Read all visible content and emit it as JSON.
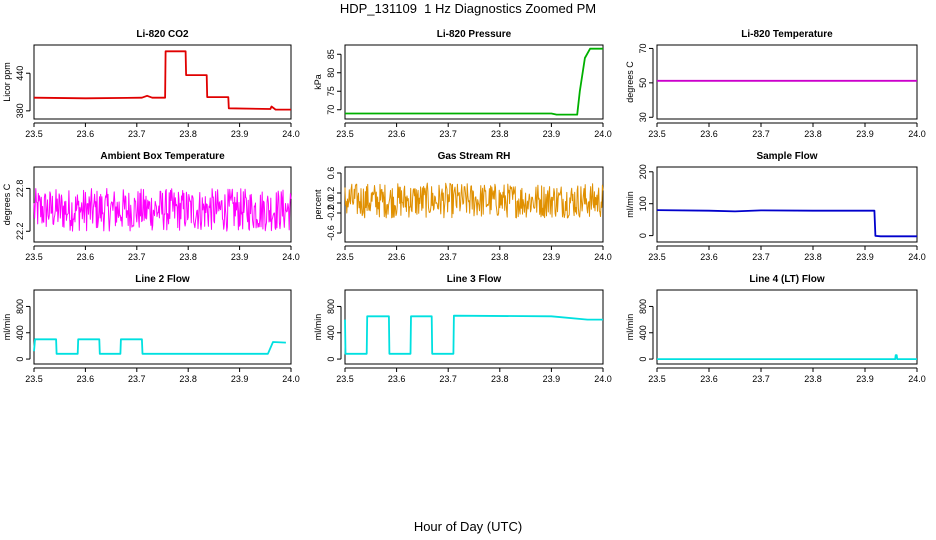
{
  "title": "HDP_131109  1 Hz Diagnostics Zoomed PM",
  "xlabel": "Hour of Day (UTC)",
  "chart_data": [
    {
      "type": "line",
      "title": "Li-820 CO2",
      "ylabel": "Licor ppm",
      "color": "#e00000",
      "xticks": [
        23.5,
        23.6,
        23.7,
        23.8,
        23.9,
        24.0
      ],
      "xlim": [
        23.5,
        24.0
      ],
      "yticks": [
        380,
        440
      ],
      "ylim": [
        367,
        485
      ],
      "series": [
        {
          "x": [
            23.5,
            23.6,
            23.71,
            23.72,
            23.73,
            23.755,
            23.756,
            23.795,
            23.796,
            23.836,
            23.837,
            23.878,
            23.879,
            23.96,
            23.962,
            23.97,
            24.0
          ],
          "y": [
            401,
            400,
            401,
            404,
            401,
            401,
            475,
            475,
            437,
            437,
            402,
            402,
            384,
            383,
            387,
            382,
            382
          ]
        }
      ]
    },
    {
      "type": "line",
      "title": "Li-820 Pressure",
      "ylabel": "kPa",
      "color": "#00b000",
      "xticks": [
        23.5,
        23.6,
        23.7,
        23.8,
        23.9,
        24.0
      ],
      "xlim": [
        23.5,
        24.0
      ],
      "yticks": [
        70,
        75,
        80,
        85
      ],
      "ylim": [
        67.5,
        87.5
      ],
      "series": [
        {
          "x": [
            23.5,
            23.9,
            23.91,
            23.95,
            23.955,
            23.965,
            23.975,
            24.0
          ],
          "y": [
            69.0,
            69.0,
            68.7,
            68.7,
            75,
            84,
            86.5,
            86.5
          ]
        }
      ]
    },
    {
      "type": "line",
      "title": "Li-820 Temperature",
      "ylabel": "degrees C",
      "color": "#cc00cc",
      "xticks": [
        23.5,
        23.6,
        23.7,
        23.8,
        23.9,
        24.0
      ],
      "xlim": [
        23.5,
        24.0
      ],
      "yticks": [
        30,
        50,
        70
      ],
      "ylim": [
        29,
        72
      ],
      "series": [
        {
          "x": [
            23.5,
            24.0
          ],
          "y": [
            51.2,
            51.2
          ]
        }
      ]
    },
    {
      "type": "line",
      "title": "Ambient Box Temperature",
      "ylabel": "degrees C",
      "color": "#ff00ff",
      "xticks": [
        23.5,
        23.6,
        23.7,
        23.8,
        23.9,
        24.0
      ],
      "xlim": [
        23.5,
        24.0
      ],
      "yticks": [
        22.2,
        22.8
      ],
      "ylim": [
        22.05,
        23.1
      ],
      "series": [
        {
          "noise": {
            "from": 23.5,
            "to": 24.0,
            "n": 420,
            "center": 22.5,
            "amp": 0.3
          }
        }
      ]
    },
    {
      "type": "line",
      "title": "Gas Stream RH",
      "ylabel": "percent",
      "color": "#e09000",
      "xticks": [
        23.5,
        23.6,
        23.7,
        23.8,
        23.9,
        24.0
      ],
      "xlim": [
        23.5,
        24.0
      ],
      "yticks": [
        -0.6,
        -0.2,
        0.0,
        0.2,
        0.6
      ],
      "ylim": [
        -0.78,
        0.72
      ],
      "series": [
        {
          "noise": {
            "from": 23.5,
            "to": 24.0,
            "n": 420,
            "center": 0.05,
            "amp": 0.35
          }
        }
      ]
    },
    {
      "type": "line",
      "title": "Sample Flow",
      "ylabel": "ml/min",
      "color": "#0000cc",
      "xticks": [
        23.5,
        23.6,
        23.7,
        23.8,
        23.9,
        24.0
      ],
      "xlim": [
        23.5,
        24.0
      ],
      "yticks": [
        0,
        100,
        200
      ],
      "ylim": [
        -20,
        215
      ],
      "series": [
        {
          "x": [
            23.5,
            23.6,
            23.65,
            23.7,
            23.8,
            23.918,
            23.92,
            23.93,
            24.0
          ],
          "y": [
            80,
            78,
            76,
            79,
            78,
            78,
            -1,
            -2,
            -2
          ]
        }
      ]
    },
    {
      "type": "line",
      "title": "Line 2 Flow",
      "ylabel": "ml/min",
      "color": "#00e0e0",
      "xticks": [
        23.5,
        23.6,
        23.7,
        23.8,
        23.9,
        24.0
      ],
      "xlim": [
        23.5,
        24.0
      ],
      "yticks": [
        0,
        400,
        800
      ],
      "ylim": [
        -75,
        1050
      ],
      "series": [
        {
          "x": [
            23.5,
            23.502,
            23.543,
            23.544,
            23.585,
            23.586,
            23.627,
            23.628,
            23.668,
            23.669,
            23.71,
            23.711,
            23.955,
            23.965,
            23.99
          ],
          "y": [
            120,
            300,
            300,
            80,
            80,
            300,
            300,
            80,
            80,
            300,
            300,
            80,
            80,
            260,
            250
          ]
        }
      ]
    },
    {
      "type": "line",
      "title": "Line 3 Flow",
      "ylabel": "ml/min",
      "color": "#00e0e0",
      "xticks": [
        23.5,
        23.6,
        23.7,
        23.8,
        23.9,
        24.0
      ],
      "xlim": [
        23.5,
        24.0
      ],
      "yticks": [
        0,
        400,
        800
      ],
      "ylim": [
        -75,
        1050
      ],
      "series": [
        {
          "x": [
            23.5,
            23.501,
            23.502,
            23.542,
            23.543,
            23.585,
            23.586,
            23.627,
            23.628,
            23.668,
            23.669,
            23.71,
            23.711,
            23.9,
            23.97,
            24.0
          ],
          "y": [
            600,
            80,
            80,
            80,
            650,
            650,
            80,
            80,
            650,
            650,
            80,
            80,
            660,
            650,
            600,
            600
          ]
        }
      ]
    },
    {
      "type": "line",
      "title": "Line 4 (LT) Flow",
      "ylabel": "ml/min",
      "color": "#00e0e0",
      "xticks": [
        23.5,
        23.6,
        23.7,
        23.8,
        23.9,
        24.0
      ],
      "xlim": [
        23.5,
        24.0
      ],
      "yticks": [
        0,
        400,
        800
      ],
      "ylim": [
        -75,
        1050
      ],
      "series": [
        {
          "x": [
            23.5,
            23.958,
            23.959,
            23.961,
            23.962,
            24.0
          ],
          "y": [
            0,
            0,
            60,
            60,
            0,
            0
          ]
        }
      ]
    }
  ]
}
